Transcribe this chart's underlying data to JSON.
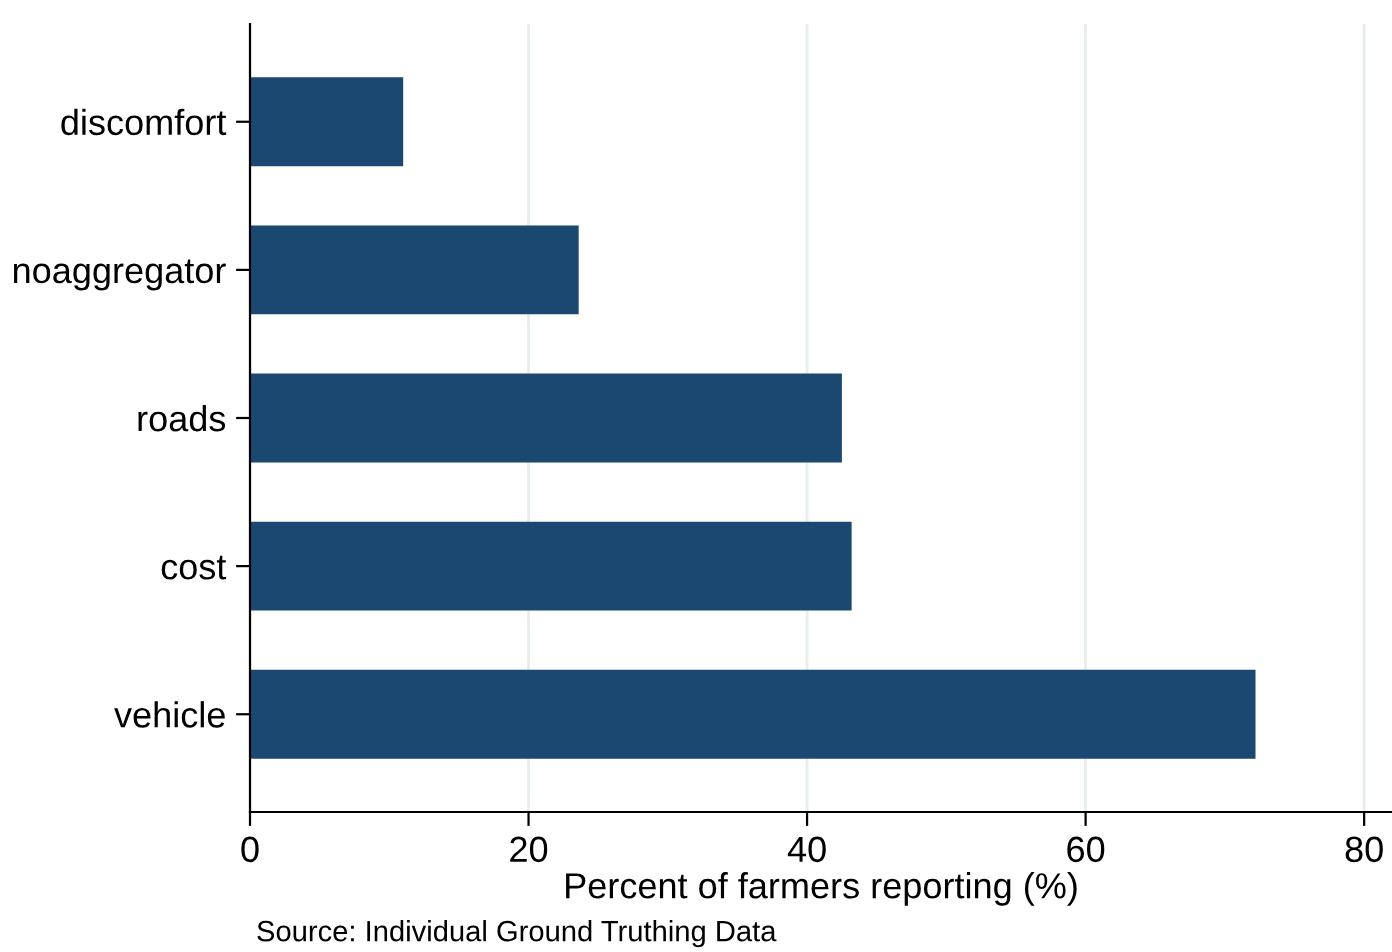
{
  "chart_data": {
    "type": "bar",
    "orientation": "horizontal",
    "categories": [
      "discomfort",
      "noaggregator",
      "roads",
      "cost",
      "vehicle"
    ],
    "values": [
      11,
      23.6,
      42.5,
      43.2,
      72.2
    ],
    "color": "#1b4870",
    "xlabel": "Percent of farmers reporting (%)",
    "xlim": [
      0,
      82
    ],
    "xticks": [
      0,
      20,
      40,
      60,
      80
    ],
    "grid": "x",
    "annotations": [
      "Source: Individual Ground Truthing Data"
    ]
  }
}
